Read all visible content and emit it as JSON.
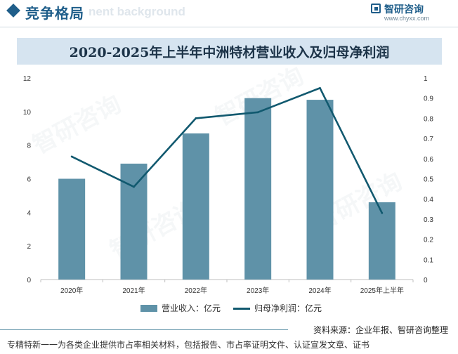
{
  "header": {
    "section_title": "竞争格局",
    "ghost_text": "nent background",
    "logo_name": "智研咨询",
    "logo_url": "www.chyxx.com"
  },
  "colors": {
    "bar": "#5f92a8",
    "line": "#11596f",
    "title_band": "#d6e4f0",
    "accent": "#1f5e8a"
  },
  "chart_data": {
    "type": "bar",
    "title": "2020-2025年上半年中洲特材营业收入及归母净利润",
    "categories": [
      "2020年",
      "2021年",
      "2022年",
      "2023年",
      "2024年",
      "2025年上半年"
    ],
    "series": [
      {
        "name": "营业收入：亿元",
        "type": "bar",
        "axis": "left",
        "values": [
          6.0,
          6.9,
          8.7,
          10.8,
          10.7,
          4.6
        ]
      },
      {
        "name": "归母净利润：亿元",
        "type": "line",
        "axis": "right",
        "values": [
          0.61,
          0.46,
          0.8,
          0.83,
          0.95,
          0.33
        ]
      }
    ],
    "y_left": {
      "min": 0,
      "max": 12,
      "ticks": [
        "0",
        "2",
        "4",
        "6",
        "8",
        "10",
        "12"
      ]
    },
    "y_right": {
      "min": 0,
      "max": 1,
      "ticks": [
        "0",
        "0.1",
        "0.2",
        "0.3",
        "0.4",
        "0.5",
        "0.6",
        "0.7",
        "0.8",
        "0.9",
        "1"
      ]
    },
    "grid": false,
    "legend": "bottom"
  },
  "source": "资料来源：企业年报、智研咨询整理",
  "footer": "专精特新一一为各类企业提供市占率相关材料，包括报告、市占率证明文件、认证宣发文章、证书",
  "watermark": "智研咨询"
}
